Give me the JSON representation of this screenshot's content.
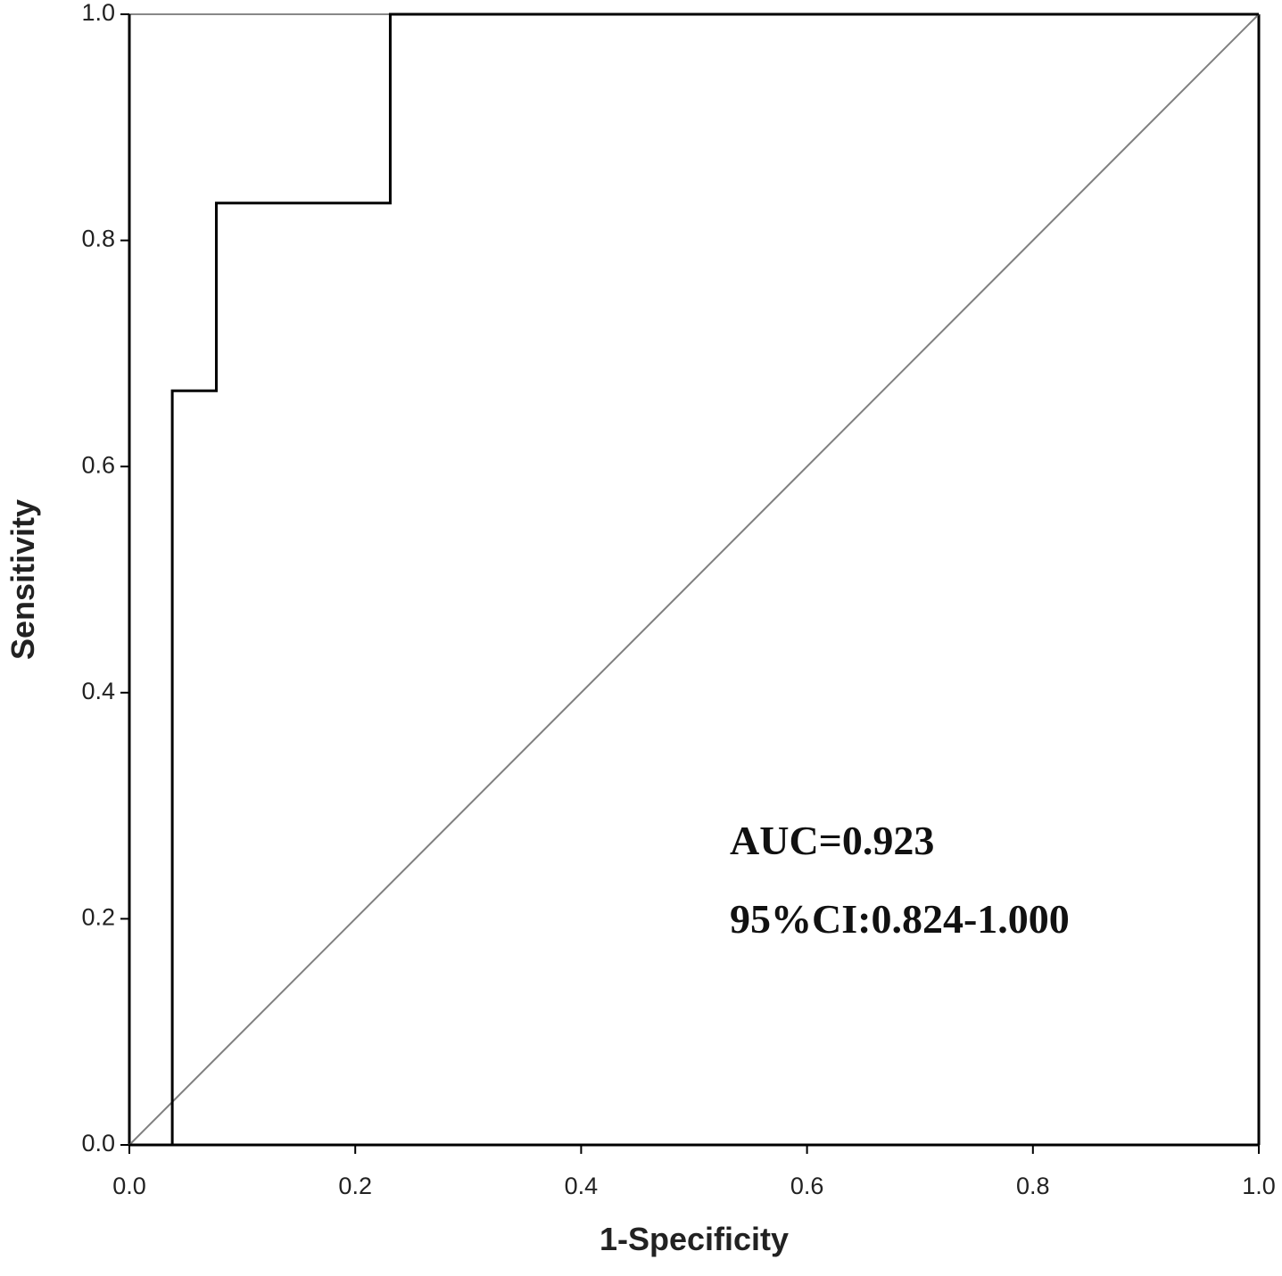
{
  "chart_data": {
    "type": "line",
    "xlabel": "1-Specificity",
    "ylabel": "Sensitivity",
    "xlim": [
      0,
      1
    ],
    "ylim": [
      0,
      1
    ],
    "xticks": [
      {
        "value": 0,
        "label": "0.0"
      },
      0.2,
      0.4,
      0.6,
      0.8,
      {
        "value": 1,
        "label": "1.0"
      }
    ],
    "yticks": [
      {
        "value": 0,
        "label": "0.0"
      },
      0.2,
      0.4,
      0.6,
      0.8,
      {
        "value": 1,
        "label": "1.0"
      }
    ],
    "series": [
      {
        "color": "#000000",
        "x": [
          0,
          0.038,
          0.038,
          0.077,
          0.077,
          0.231,
          0.231,
          1
        ],
        "values": [
          0,
          0,
          0.667,
          0.667,
          0.833,
          0.833,
          1,
          1
        ]
      },
      {
        "color": "#808080",
        "x": [
          0,
          1
        ],
        "values": [
          0,
          1
        ]
      }
    ],
    "annotations": [
      "AUC=0.923",
      "95%CI:0.824-1.000"
    ]
  }
}
